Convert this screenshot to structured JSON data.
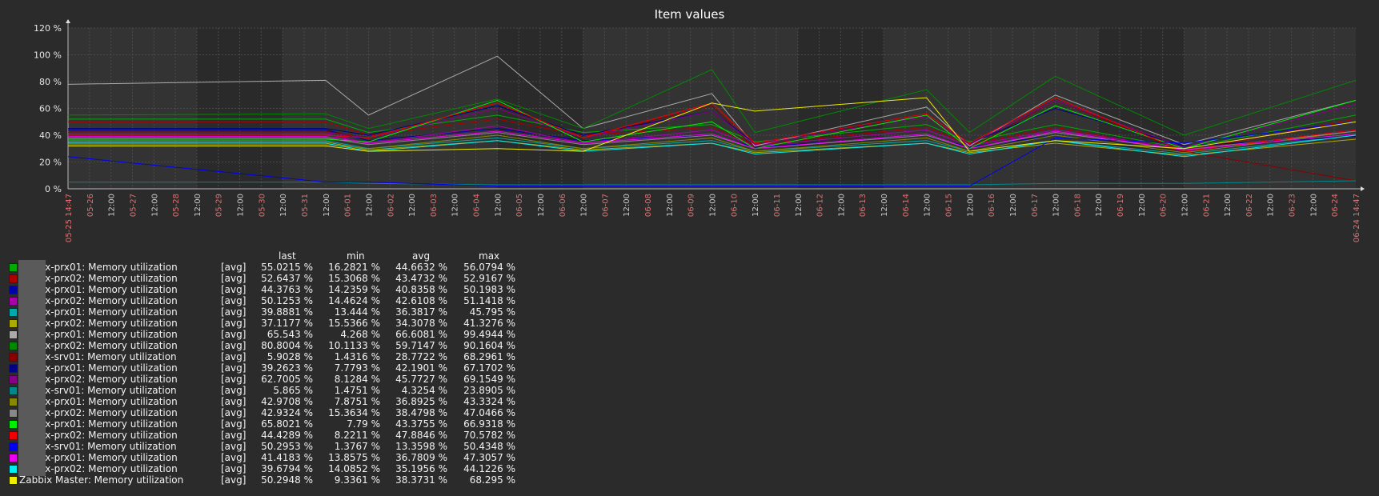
{
  "chart_data": {
    "type": "line",
    "title": "Item values",
    "ylim": [
      0,
      120
    ],
    "y_ticks": [
      "0 %",
      "20 %",
      "40 %",
      "60 %",
      "80 %",
      "100 %",
      "120 %"
    ],
    "grid": true,
    "x_start_label": "05-25 14:47",
    "x_end_label": "06-24 14:47",
    "x_tick_labels": [
      "05-26",
      "12:00",
      "05-27",
      "12:00",
      "05-28",
      "12:00",
      "05-29",
      "12:00",
      "05-30",
      "12:00",
      "05-31",
      "12:00",
      "06-01",
      "12:00",
      "06-02",
      "12:00",
      "06-03",
      "12:00",
      "06-04",
      "12:00",
      "06-05",
      "12:00",
      "06-06",
      "12:00",
      "06-07",
      "12:00",
      "06-08",
      "12:00",
      "06-09",
      "12:00",
      "06-10",
      "12:00",
      "06-11",
      "12:00",
      "06-12",
      "12:00",
      "06-13",
      "12:00",
      "06-14",
      "12:00",
      "06-15",
      "12:00",
      "06-16",
      "12:00",
      "06-17",
      "12:00",
      "06-18",
      "12:00",
      "06-19",
      "12:00",
      "06-20",
      "12:00",
      "06-21",
      "12:00",
      "06-22",
      "12:00",
      "06-23",
      "12:00",
      "06-24"
    ],
    "x_days": [
      0,
      6,
      7,
      10,
      12,
      15,
      16,
      20,
      21,
      23,
      26,
      30
    ],
    "series": [
      {
        "name": "zabbix-prx01: Memory utilization",
        "color": "#00aa00",
        "func": "[avg]",
        "last": "55.0215 %",
        "min": "16.2821 %",
        "avg": "44.6632 %",
        "max": "56.0794 %",
        "y": [
          52,
          52,
          42,
          55,
          42,
          48,
          35,
          48,
          35,
          48,
          30,
          55
        ]
      },
      {
        "name": "zabbix-prx02: Memory utilization",
        "color": "#aa0000",
        "func": "[avg]",
        "last": "52.6437 %",
        "min": "15.3068 %",
        "avg": "43.4732 %",
        "max": "52.9167 %",
        "y": [
          50,
          50,
          40,
          52,
          40,
          46,
          33,
          46,
          33,
          46,
          28,
          52
        ]
      },
      {
        "name": "zabbix-prx01: Memory utilization",
        "color": "#0000aa",
        "func": "[avg]",
        "last": "44.3763 %",
        "min": "14.2359 %",
        "avg": "40.8358 %",
        "max": "50.1983 %",
        "y": [
          44,
          44,
          36,
          45,
          36,
          40,
          31,
          40,
          31,
          40,
          27,
          44
        ]
      },
      {
        "name": "zabbix-prx02: Memory utilization",
        "color": "#aa00aa",
        "func": "[avg]",
        "last": "50.1253 %",
        "min": "14.4624 %",
        "avg": "42.6108 %",
        "max": "51.1418 %",
        "y": [
          41,
          41,
          34,
          47,
          34,
          44,
          32,
          44,
          32,
          44,
          30,
          50
        ]
      },
      {
        "name": "zabbix-prx01: Memory utilization",
        "color": "#00aaaa",
        "func": "[avg]",
        "last": "39.8881 %",
        "min": "13.444 %",
        "avg": "36.3817 %",
        "max": "45.795 %",
        "y": [
          36,
          36,
          30,
          38,
          30,
          36,
          28,
          36,
          28,
          36,
          26,
          40
        ]
      },
      {
        "name": "zabbix-prx02: Memory utilization",
        "color": "#aaaa00",
        "func": "[avg]",
        "last": "37.1177 %",
        "min": "15.5366 %",
        "avg": "34.3078 %",
        "max": "41.3276 %",
        "y": [
          35,
          35,
          29,
          36,
          29,
          34,
          27,
          34,
          27,
          34,
          25,
          37
        ]
      },
      {
        "name": "zabbix-prx01: Memory utilization",
        "color": "#aaaaaa",
        "func": "[avg]",
        "last": "65.543 %",
        "min": "4.268 %",
        "avg": "66.6081 %",
        "max": "99.4944 %",
        "y": [
          78,
          81,
          55,
          99,
          45,
          71,
          32,
          61,
          32,
          70,
          33,
          66
        ]
      },
      {
        "name": "zabbix-prx02: Memory utilization",
        "color": "#008800",
        "func": "[avg]",
        "last": "80.8004 %",
        "min": "10.1133 %",
        "avg": "59.7147 %",
        "max": "90.1604 %",
        "y": [
          55,
          56,
          45,
          67,
          45,
          89,
          42,
          74,
          42,
          84,
          40,
          81
        ]
      },
      {
        "name": "zabbix-srv01: Memory utilization",
        "color": "#880000",
        "func": "[avg]",
        "last": "5.9028 %",
        "min": "1.4316 %",
        "avg": "28.7722 %",
        "max": "68.2961 %",
        "y": [
          43,
          43,
          38,
          64,
          38,
          62,
          30,
          55,
          30,
          66,
          28,
          6
        ]
      },
      {
        "name": "zabbix-prx01: Memory utilization",
        "color": "#000088",
        "func": "[avg]",
        "last": "39.2623 %",
        "min": "7.7793 %",
        "avg": "42.1901 %",
        "max": "67.1702 %",
        "y": [
          45,
          45,
          40,
          62,
          40,
          58,
          34,
          56,
          34,
          60,
          32,
          39
        ]
      },
      {
        "name": "zabbix-prx02: Memory utilization",
        "color": "#880088",
        "func": "[avg]",
        "last": "62.7005 %",
        "min": "8.1284 %",
        "avg": "45.7727 %",
        "max": "69.1549 %",
        "y": [
          42,
          42,
          38,
          60,
          38,
          58,
          33,
          54,
          33,
          66,
          31,
          63
        ]
      },
      {
        "name": "zabbix-srv01: Memory utilization",
        "color": "#008888",
        "func": "[avg]",
        "last": "5.865 %",
        "min": "1.4751 %",
        "avg": "4.3254 %",
        "max": "23.8905 %",
        "y": [
          5,
          5,
          4,
          3,
          3,
          3,
          3,
          3,
          3,
          4,
          4,
          6
        ]
      },
      {
        "name": "zabbix-prx01: Memory utilization",
        "color": "#888800",
        "func": "[avg]",
        "last": "42.9708 %",
        "min": "7.8751 %",
        "avg": "36.8925 %",
        "max": "43.3324 %",
        "y": [
          33,
          33,
          30,
          40,
          30,
          38,
          28,
          38,
          28,
          40,
          27,
          43
        ]
      },
      {
        "name": "zabbix-prx02: Memory utilization",
        "color": "#888888",
        "func": "[avg]",
        "last": "42.9324 %",
        "min": "15.3634 %",
        "avg": "38.4798 %",
        "max": "47.0466 %",
        "y": [
          38,
          38,
          33,
          42,
          33,
          40,
          30,
          40,
          30,
          42,
          29,
          43
        ]
      },
      {
        "name": "zabbix-prx01: Memory utilization",
        "color": "#00ee00",
        "func": "[avg]",
        "last": "65.8021 %",
        "min": "7.79 %",
        "avg": "43.3755 %",
        "max": "66.9318 %",
        "y": [
          37,
          37,
          35,
          66,
          35,
          50,
          30,
          55,
          30,
          62,
          30,
          66
        ]
      },
      {
        "name": "zabbix-prx02: Memory utilization",
        "color": "#ee0000",
        "func": "[avg]",
        "last": "44.4289 %",
        "min": "8.2211 %",
        "avg": "47.8846 %",
        "max": "70.5782 %",
        "y": [
          40,
          40,
          38,
          64,
          38,
          64,
          34,
          56,
          34,
          68,
          28,
          44
        ]
      },
      {
        "name": "zabbix-srv01: Memory utilization",
        "color": "#0000ee",
        "func": "[avg]",
        "last": "50.2953 %",
        "min": "1.3767 %",
        "avg": "13.3598 %",
        "max": "50.4348 %",
        "y": [
          24,
          5,
          5,
          2,
          2,
          2,
          2,
          2,
          2,
          38,
          34,
          50
        ]
      },
      {
        "name": "zabbix-prx01: Memory utilization",
        "color": "#ee00ee",
        "func": "[avg]",
        "last": "41.4183 %",
        "min": "13.8575 %",
        "avg": "36.7809 %",
        "max": "47.3057 %",
        "y": [
          39,
          39,
          34,
          43,
          34,
          41,
          30,
          41,
          30,
          43,
          29,
          41
        ]
      },
      {
        "name": "zabbix-prx02: Memory utilization",
        "color": "#00eeee",
        "func": "[avg]",
        "last": "39.6794 %",
        "min": "14.0852 %",
        "avg": "35.1956 %",
        "max": "44.1226 %",
        "y": [
          34,
          34,
          28,
          36,
          28,
          34,
          26,
          34,
          26,
          36,
          24,
          40
        ]
      },
      {
        "name": "Zabbix Master: Memory utilization",
        "color": "#eeee00",
        "func": "[avg]",
        "last": "50.2948 %",
        "min": "9.3361 %",
        "avg": "38.3731 %",
        "max": "68.295 %",
        "y": [
          32,
          32,
          28,
          30,
          28,
          64,
          58,
          68,
          28,
          36,
          30,
          50
        ]
      }
    ]
  },
  "legend_headers": {
    "last": "last",
    "min": "min",
    "avg": "avg",
    "max": "max"
  }
}
